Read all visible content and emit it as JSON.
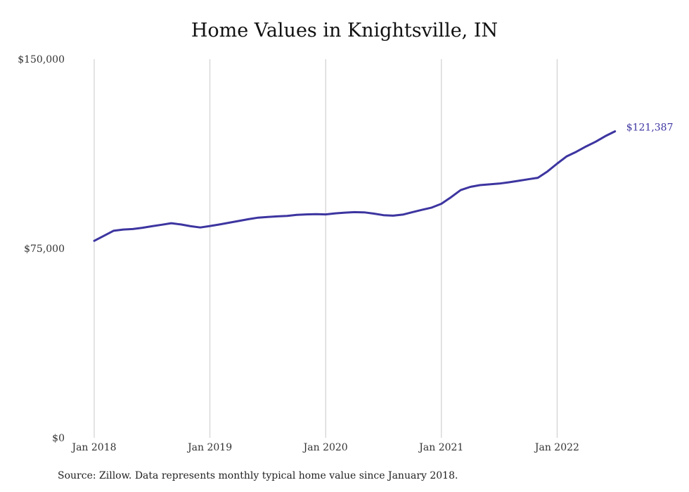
{
  "title": "Home Values in Knightsville, IN",
  "source": "Source: Zillow. Data represents monthly typical home value since January 2018.",
  "chart_data": {
    "type": "line",
    "title": "Home Values in Knightsville, IN",
    "xlabel": "",
    "ylabel": "",
    "ylim": [
      0,
      150000
    ],
    "y_ticks": [
      {
        "value": 0,
        "label": "$0"
      },
      {
        "value": 75000,
        "label": "$75,000"
      },
      {
        "value": 150000,
        "label": "$150,000"
      }
    ],
    "x_ticks": [
      {
        "value": "2018-01",
        "label": "Jan 2018"
      },
      {
        "value": "2019-01",
        "label": "Jan 2019"
      },
      {
        "value": "2020-01",
        "label": "Jan 2020"
      },
      {
        "value": "2021-01",
        "label": "Jan 2021"
      },
      {
        "value": "2022-01",
        "label": "Jan 2022"
      }
    ],
    "grid": "vertical",
    "color": "#3d35a0",
    "end_label": "$121,387",
    "series": [
      {
        "x": [
          "2018-01",
          "2018-02",
          "2018-03",
          "2018-04",
          "2018-05",
          "2018-06",
          "2018-07",
          "2018-08",
          "2018-09",
          "2018-10",
          "2018-11",
          "2018-12",
          "2019-01",
          "2019-02",
          "2019-03",
          "2019-04",
          "2019-05",
          "2019-06",
          "2019-07",
          "2019-08",
          "2019-09",
          "2019-10",
          "2019-11",
          "2019-12",
          "2020-01",
          "2020-02",
          "2020-03",
          "2020-04",
          "2020-05",
          "2020-06",
          "2020-07",
          "2020-08",
          "2020-09",
          "2020-10",
          "2020-11",
          "2020-12",
          "2021-01",
          "2021-02",
          "2021-03",
          "2021-04",
          "2021-05",
          "2021-06",
          "2021-07",
          "2021-08",
          "2021-09",
          "2021-10",
          "2021-11",
          "2021-12",
          "2022-01",
          "2022-02",
          "2022-03",
          "2022-04",
          "2022-05",
          "2022-06",
          "2022-07"
        ],
        "y": [
          78000,
          80000,
          82000,
          82500,
          82700,
          83200,
          83800,
          84400,
          85000,
          84500,
          83800,
          83300,
          83900,
          84500,
          85200,
          85900,
          86600,
          87200,
          87500,
          87700,
          87900,
          88300,
          88500,
          88600,
          88500,
          88900,
          89200,
          89400,
          89300,
          88800,
          88200,
          88000,
          88400,
          89400,
          90300,
          91200,
          92700,
          95300,
          98100,
          99400,
          100100,
          100400,
          100700,
          101200,
          101800,
          102400,
          103000,
          105500,
          108600,
          111500,
          113300,
          115400,
          117300,
          119500,
          121387
        ]
      }
    ]
  }
}
